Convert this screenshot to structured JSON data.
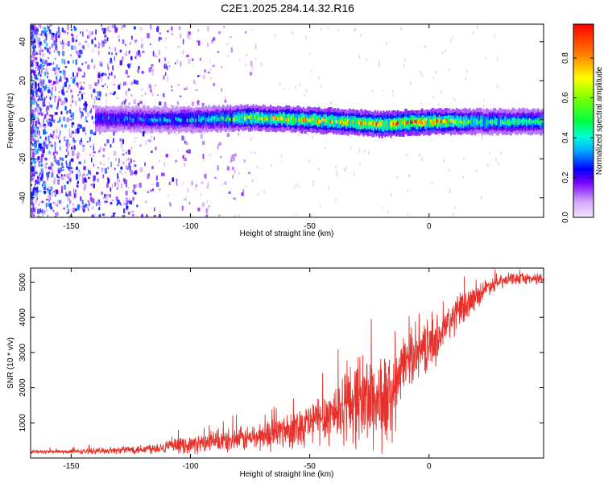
{
  "title": "C2E1.2025.284.14.32.R16",
  "chart_data": [
    {
      "type": "heatmap",
      "name": "spectrogram",
      "title": "C2E1.2025.284.14.32.R16",
      "xlabel": "Height of straight line (km)",
      "ylabel": "Frequency (Hz)",
      "xlim": [
        -167,
        48
      ],
      "ylim": [
        -50,
        49
      ],
      "xticks": [
        -150,
        -100,
        -50,
        0
      ],
      "yticks": [
        -40,
        -20,
        0,
        20,
        40
      ],
      "colorbar": {
        "label": "Normalized spectral amplitude",
        "range": [
          0,
          0.97
        ],
        "ticks": [
          0.0,
          0.2,
          0.4,
          0.6,
          0.8
        ]
      },
      "description_points": {
        "signal_center_hz": [
          [
            -130,
            0.5
          ],
          [
            -110,
            0
          ],
          [
            -90,
            0.5
          ],
          [
            -75,
            1
          ],
          [
            -60,
            0.5
          ],
          [
            -45,
            -0.5
          ],
          [
            -30,
            -1.5
          ],
          [
            -20,
            -2.5
          ],
          [
            -10,
            -1.5
          ],
          [
            0,
            -1
          ],
          [
            20,
            -1
          ],
          [
            45,
            -1
          ]
        ],
        "peak_amplitude": [
          [
            -130,
            0.35
          ],
          [
            -110,
            0.4
          ],
          [
            -90,
            0.5
          ],
          [
            -75,
            0.75
          ],
          [
            -60,
            0.8
          ],
          [
            -45,
            0.85
          ],
          [
            -30,
            0.85
          ],
          [
            -20,
            0.9
          ],
          [
            -10,
            0.95
          ],
          [
            0,
            0.95
          ],
          [
            20,
            0.6
          ],
          [
            45,
            0.55
          ]
        ]
      }
    },
    {
      "type": "line",
      "name": "snr",
      "xlabel": "Height of straight line (km)",
      "ylabel": "SNR (10 * v/v)",
      "xlim": [
        -167,
        48
      ],
      "ylim": [
        0,
        5400
      ],
      "xticks": [
        -150,
        -100,
        -50,
        0
      ],
      "yticks": [
        1000,
        2000,
        3000,
        4000,
        5000
      ],
      "color": "#e8302a",
      "series": [
        {
          "name": "SNR",
          "x": [
            -167,
            -150,
            -140,
            -130,
            -120,
            -110,
            -100,
            -90,
            -80,
            -70,
            -60,
            -50,
            -40,
            -35,
            -30,
            -25,
            -20,
            -15,
            -10,
            -5,
            0,
            5,
            10,
            15,
            20,
            25,
            30,
            35,
            40,
            48
          ],
          "mean": [
            180,
            180,
            200,
            220,
            260,
            320,
            380,
            450,
            520,
            620,
            800,
            1000,
            1300,
            1500,
            1700,
            1700,
            1600,
            1700,
            2800,
            3000,
            3200,
            3500,
            4000,
            4300,
            4600,
            4900,
            5000,
            5100,
            5100,
            5100
          ],
          "spread": [
            60,
            80,
            100,
            120,
            180,
            220,
            300,
            380,
            420,
            500,
            650,
            800,
            1100,
            1300,
            1600,
            1700,
            1800,
            1500,
            900,
            900,
            900,
            800,
            700,
            600,
            400,
            300,
            250,
            200,
            200,
            200
          ]
        }
      ]
    }
  ]
}
